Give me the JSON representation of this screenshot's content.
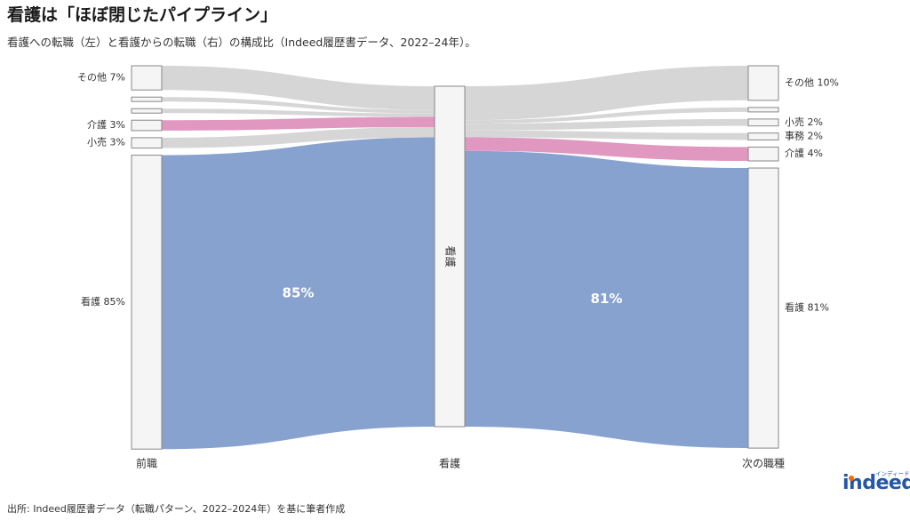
{
  "title": "看護は「ほぼ閉じたパイプライン」",
  "subtitle": "看護への転職（左）と看護からの転職（右）の構成比（Indeed履歴書データ、2022–24年）。",
  "source": "出所: Indeed履歴書データ（転職パターン、2022–2024年）を基に筆者作成",
  "logo": {
    "text": "indeed",
    "kana": "インディード"
  },
  "colors": {
    "nursing": "#87a2cf",
    "care": "#e097c0",
    "other": "#d6d6d6",
    "node_fill": "#f5f5f5",
    "node_stroke": "#888888",
    "logo": "#2557a7",
    "logo_accent": "#ff6600"
  },
  "chart_data": {
    "type": "sankey",
    "columns": [
      "前職",
      "看護",
      "次の職種"
    ],
    "center_node": "看護",
    "left_nodes": [
      {
        "label": "その他",
        "value": 7,
        "display": "その他 7%",
        "color": "other"
      },
      {
        "label": "",
        "value": 1,
        "display": "",
        "color": "other"
      },
      {
        "label": "",
        "value": 1,
        "display": "",
        "color": "other"
      },
      {
        "label": "介護",
        "value": 3,
        "display": "介護 3%",
        "color": "care"
      },
      {
        "label": "小売",
        "value": 3,
        "display": "小売 3%",
        "color": "other"
      },
      {
        "label": "看護",
        "value": 85,
        "display": "看護 85%",
        "color": "nursing"
      }
    ],
    "right_nodes": [
      {
        "label": "その他",
        "value": 10,
        "display": "その他 10%",
        "color": "other"
      },
      {
        "label": "",
        "value": 1,
        "display": "",
        "color": "other"
      },
      {
        "label": "小売",
        "value": 2,
        "display": "小売 2%",
        "color": "other"
      },
      {
        "label": "事務",
        "value": 2,
        "display": "事務 2%",
        "color": "other"
      },
      {
        "label": "介護",
        "value": 4,
        "display": "介護 4%",
        "color": "care"
      },
      {
        "label": "看護",
        "value": 81,
        "display": "看護 81%",
        "color": "nursing"
      }
    ],
    "flow_labels": {
      "left_main": "85%",
      "right_main": "81%"
    }
  }
}
